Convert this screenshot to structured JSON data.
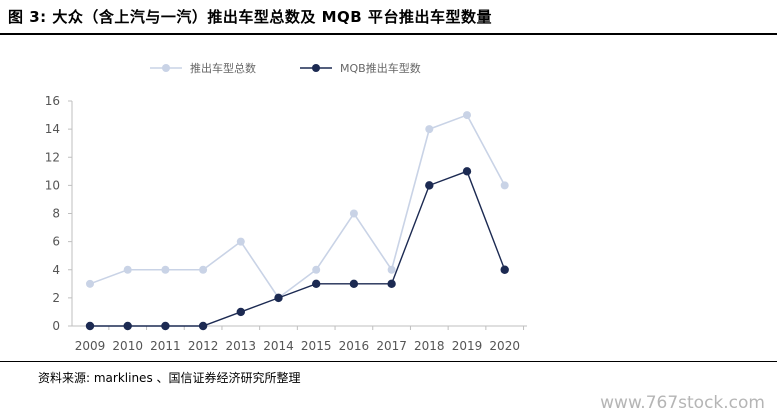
{
  "figure": {
    "title": "图 3: 大众（含上汽与一汽）推出车型总数及 MQB 平台推出车型数量",
    "source": "资料来源: marklines 、国信证券经济研究所整理",
    "watermark": "www.767stock.com"
  },
  "chart_data": {
    "type": "line",
    "title": "",
    "xlabel": "",
    "ylabel": "",
    "categories": [
      "2009",
      "2010",
      "2011",
      "2012",
      "2013",
      "2014",
      "2015",
      "2016",
      "2017",
      "2018",
      "2019",
      "2020"
    ],
    "series": [
      {
        "name": "推出车型总数",
        "color": "#c9d3e6",
        "values": [
          3,
          4,
          4,
          4,
          6,
          2,
          4,
          8,
          4,
          14,
          15,
          10
        ]
      },
      {
        "name": "MQB推出车型数",
        "color": "#1c2a52",
        "values": [
          0,
          0,
          0,
          0,
          1,
          2,
          3,
          3,
          3,
          10,
          11,
          4
        ]
      }
    ],
    "ylim": [
      0,
      16
    ],
    "yticks": [
      0,
      2,
      4,
      6,
      8,
      10,
      12,
      14,
      16
    ],
    "grid": false,
    "legend_position": "top"
  }
}
